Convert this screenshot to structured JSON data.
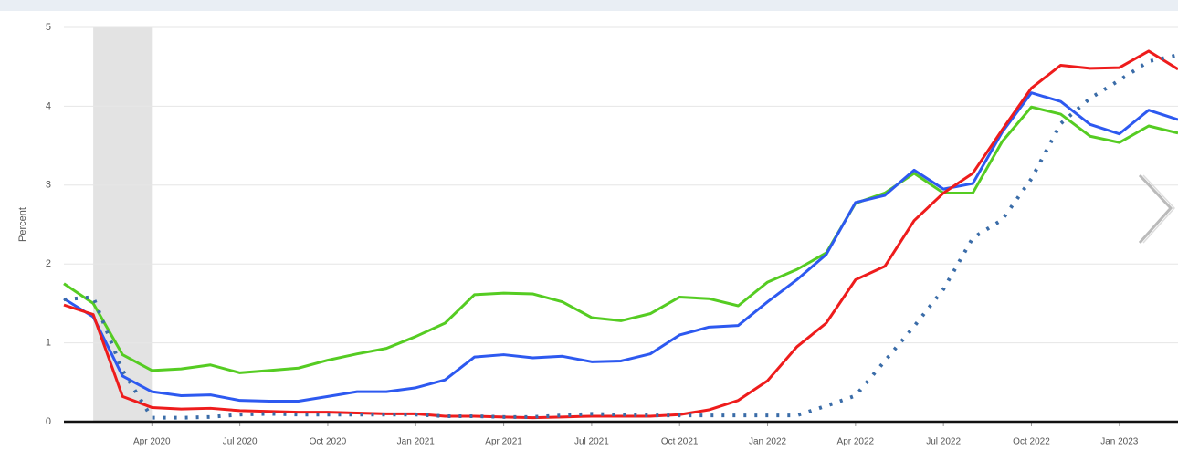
{
  "chart_data": {
    "type": "line",
    "ylabel": "Percent",
    "categories": [
      null,
      null,
      null,
      "Apr 2020",
      null,
      null,
      "Jul 2020",
      null,
      null,
      "Oct 2020",
      null,
      null,
      "Jan 2021",
      null,
      null,
      "Apr 2021",
      null,
      null,
      "Jul 2021",
      null,
      null,
      "Oct 2021",
      null,
      null,
      "Jan 2022",
      null,
      null,
      "Apr 2022",
      null,
      null,
      "Jul 2022",
      null,
      null,
      "Oct 2022",
      null,
      null,
      "Jan 2023",
      null,
      null
    ],
    "series": [
      {
        "color": "#55cc22",
        "dash": "solid",
        "values": [
          1.75,
          1.5,
          0.85,
          0.65,
          0.67,
          0.72,
          0.62,
          0.65,
          0.68,
          0.78,
          0.86,
          0.93,
          1.08,
          1.25,
          1.61,
          1.63,
          1.62,
          1.52,
          1.32,
          1.28,
          1.37,
          1.58,
          1.56,
          1.47,
          1.77,
          1.93,
          2.14,
          2.77,
          2.9,
          3.15,
          2.9,
          2.9,
          3.55,
          3.99,
          3.9,
          3.62,
          3.54,
          3.75,
          3.66
        ]
      },
      {
        "color": "#2d59f0",
        "dash": "solid",
        "values": [
          1.56,
          1.33,
          0.58,
          0.38,
          0.33,
          0.34,
          0.27,
          0.26,
          0.26,
          0.32,
          0.38,
          0.38,
          0.43,
          0.53,
          0.82,
          0.85,
          0.81,
          0.83,
          0.76,
          0.77,
          0.86,
          1.1,
          1.2,
          1.22,
          1.52,
          1.8,
          2.12,
          2.78,
          2.87,
          3.19,
          2.95,
          3.02,
          3.67,
          4.17,
          4.06,
          3.77,
          3.65,
          3.95,
          3.83
        ]
      },
      {
        "color": "#ee1c1c",
        "dash": "solid",
        "values": [
          1.48,
          1.36,
          0.32,
          0.18,
          0.16,
          0.17,
          0.14,
          0.13,
          0.12,
          0.12,
          0.11,
          0.1,
          0.1,
          0.07,
          0.07,
          0.06,
          0.05,
          0.06,
          0.07,
          0.07,
          0.07,
          0.09,
          0.15,
          0.27,
          0.52,
          0.95,
          1.25,
          1.8,
          1.97,
          2.55,
          2.9,
          3.15,
          3.7,
          4.23,
          4.52,
          4.48,
          4.49,
          4.7,
          4.47
        ]
      },
      {
        "color": "#3a6ca8",
        "dash": "dotted",
        "values": [
          1.55,
          1.58,
          0.65,
          0.05,
          0.05,
          0.06,
          0.09,
          0.1,
          0.09,
          0.09,
          0.09,
          0.09,
          0.09,
          0.07,
          0.07,
          0.06,
          0.06,
          0.08,
          0.1,
          0.09,
          0.08,
          0.08,
          0.08,
          0.08,
          0.08,
          0.08,
          0.2,
          0.33,
          0.77,
          1.21,
          1.68,
          2.33,
          2.56,
          3.08,
          3.78,
          4.1,
          4.33,
          4.57,
          4.65
        ]
      }
    ],
    "ylim": [
      0,
      5
    ],
    "yticks": [
      0,
      1,
      2,
      3,
      4,
      5
    ],
    "grid": true
  }
}
